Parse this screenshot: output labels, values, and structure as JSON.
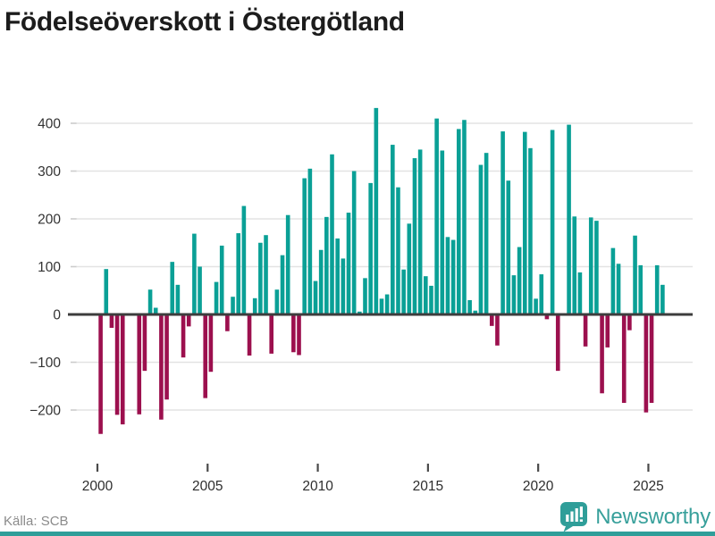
{
  "title": "Födelseöverskott i Östergötland",
  "footer": {
    "source": "Källa: SCB",
    "brand": "Newsworthy"
  },
  "colors": {
    "positive_bar": "#0aa096",
    "negative_bar": "#9c104e",
    "zero_line": "#3d3d3d",
    "gridline": "#e3e3e3",
    "axis_text": "#333333",
    "brand_teal": "#2f9e99",
    "source_text": "#8b8b8b",
    "background": "#ffffff"
  },
  "chart_data": {
    "type": "bar",
    "title": "Födelseöverskott i Östergötland",
    "grid": "horizontal",
    "legend": "none",
    "ylim": [
      -270,
      445
    ],
    "xtick_values": [
      2000,
      2005,
      2010,
      2015,
      2020,
      2025
    ],
    "xtick_labels": [
      "2000",
      "2005",
      "2010",
      "2015",
      "2020",
      "2025"
    ],
    "ytick_values": [
      400,
      300,
      200,
      100,
      0,
      -100,
      -200
    ],
    "ytick_labels": [
      "400",
      "300",
      "200",
      "100",
      "0",
      "−100",
      "−200"
    ],
    "quarters": [
      "2000 Q1",
      "2000 Q2",
      "2000 Q3",
      "2000 Q4",
      "2001 Q1",
      "2001 Q2",
      "2001 Q3",
      "2001 Q4",
      "2002 Q1",
      "2002 Q2",
      "2002 Q3",
      "2002 Q4",
      "2003 Q1",
      "2003 Q2",
      "2003 Q3",
      "2003 Q4",
      "2004 Q1",
      "2004 Q2",
      "2004 Q3",
      "2004 Q4",
      "2005 Q1",
      "2005 Q2",
      "2005 Q3",
      "2005 Q4",
      "2006 Q1",
      "2006 Q2",
      "2006 Q3",
      "2006 Q4",
      "2007 Q1",
      "2007 Q2",
      "2007 Q3",
      "2007 Q4",
      "2008 Q1",
      "2008 Q2",
      "2008 Q3",
      "2008 Q4",
      "2009 Q1",
      "2009 Q2",
      "2009 Q3",
      "2009 Q4",
      "2010 Q1",
      "2010 Q2",
      "2010 Q3",
      "2010 Q4",
      "2011 Q1",
      "2011 Q2",
      "2011 Q3",
      "2011 Q4",
      "2012 Q1",
      "2012 Q2",
      "2012 Q3",
      "2012 Q4",
      "2013 Q1",
      "2013 Q2",
      "2013 Q3",
      "2013 Q4",
      "2014 Q1",
      "2014 Q2",
      "2014 Q3",
      "2014 Q4",
      "2015 Q1",
      "2015 Q2",
      "2015 Q3",
      "2015 Q4",
      "2016 Q1",
      "2016 Q2",
      "2016 Q3",
      "2016 Q4",
      "2017 Q1",
      "2017 Q2",
      "2017 Q3",
      "2017 Q4",
      "2018 Q1",
      "2018 Q2",
      "2018 Q3",
      "2018 Q4",
      "2019 Q1",
      "2019 Q2",
      "2019 Q3",
      "2019 Q4",
      "2020 Q1",
      "2020 Q2",
      "2020 Q3",
      "2020 Q4",
      "2021 Q1",
      "2021 Q2",
      "2021 Q3",
      "2021 Q4",
      "2022 Q1",
      "2022 Q2",
      "2022 Q3",
      "2022 Q4",
      "2023 Q1",
      "2023 Q2",
      "2023 Q3",
      "2023 Q4",
      "2024 Q1",
      "2024 Q2",
      "2024 Q3",
      "2024 Q4",
      "2025 Q1",
      "2025 Q2",
      "2025 Q3"
    ],
    "values": [
      -250,
      95,
      -28,
      -210,
      -230,
      0,
      0,
      -209,
      -118,
      52,
      14,
      -220,
      -178,
      110,
      62,
      -90,
      -25,
      169,
      100,
      -175,
      -120,
      68,
      144,
      -35,
      37,
      170,
      227,
      -86,
      34,
      150,
      166,
      -82,
      52,
      124,
      208,
      -79,
      -85,
      285,
      305,
      70,
      135,
      204,
      335,
      159,
      117,
      213,
      300,
      6,
      76,
      275,
      432,
      33,
      42,
      355,
      266,
      94,
      190,
      327,
      345,
      80,
      60,
      410,
      343,
      162,
      156,
      388,
      407,
      30,
      8,
      313,
      338,
      -24,
      -65,
      383,
      280,
      82,
      141,
      382,
      348,
      33,
      84,
      -10,
      386,
      -118,
      0,
      397,
      205,
      88,
      -67,
      203,
      196,
      -165,
      -69,
      139,
      106,
      -185,
      -33,
      165,
      103,
      -205,
      -185,
      103,
      62
    ]
  }
}
